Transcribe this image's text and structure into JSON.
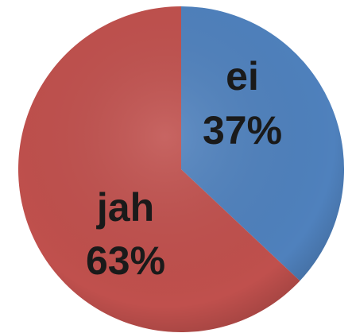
{
  "chart_data": {
    "type": "pie",
    "categories": [
      "ei",
      "jah"
    ],
    "values": [
      37,
      63
    ],
    "value_labels": [
      "37%",
      "63%"
    ],
    "colors": [
      "#4f81bd",
      "#c0504d"
    ]
  }
}
